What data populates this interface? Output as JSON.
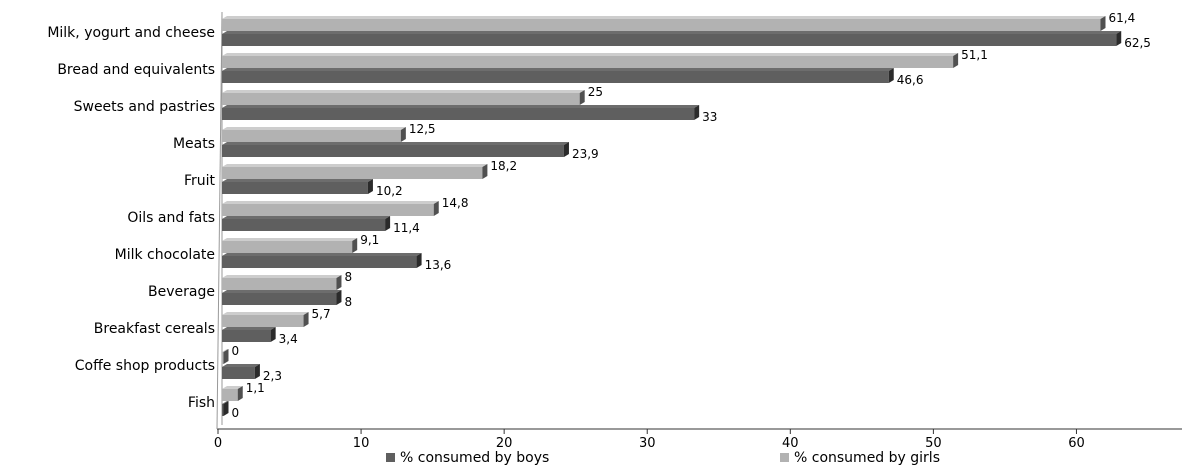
{
  "chart_data": {
    "type": "bar",
    "orientation": "horizontal",
    "categories": [
      "Milk, yogurt and cheese",
      "Bread and equivalents",
      "Sweets and pastries",
      "Meats",
      "Fruit",
      "Oils and fats",
      "Milk chocolate",
      "Beverage",
      "Breakfast cereals",
      "Coffe shop products",
      "Fish"
    ],
    "series": [
      {
        "name": "% consumed by girls",
        "values": [
          61.4,
          51.1,
          25,
          12.5,
          18.2,
          14.8,
          9.1,
          8,
          5.7,
          0,
          1.1
        ],
        "labels": [
          "61,4",
          "51,1",
          "25",
          "12,5",
          "18,2",
          "14,8",
          "9,1",
          "8",
          "5,7",
          "0",
          "1,1"
        ],
        "color": "#b2b2b2"
      },
      {
        "name": "% consumed by boys",
        "values": [
          62.5,
          46.6,
          33,
          23.9,
          10.2,
          11.4,
          13.6,
          8,
          3.4,
          2.3,
          0
        ],
        "labels": [
          "62,5",
          "46,6",
          "33",
          "23,9",
          "10,2",
          "11,4",
          "13,6",
          "8",
          "3,4",
          "2,3",
          "0"
        ],
        "color": "#5f5f5f"
      }
    ],
    "xlim": [
      0,
      65
    ],
    "xticks": [
      0,
      10,
      20,
      30,
      40,
      50,
      60
    ],
    "title": "",
    "xlabel": "",
    "ylabel": "",
    "grid": false,
    "legend": [
      "% consumed by boys",
      "% consumed by girls"
    ],
    "legend_position": "bottom"
  }
}
